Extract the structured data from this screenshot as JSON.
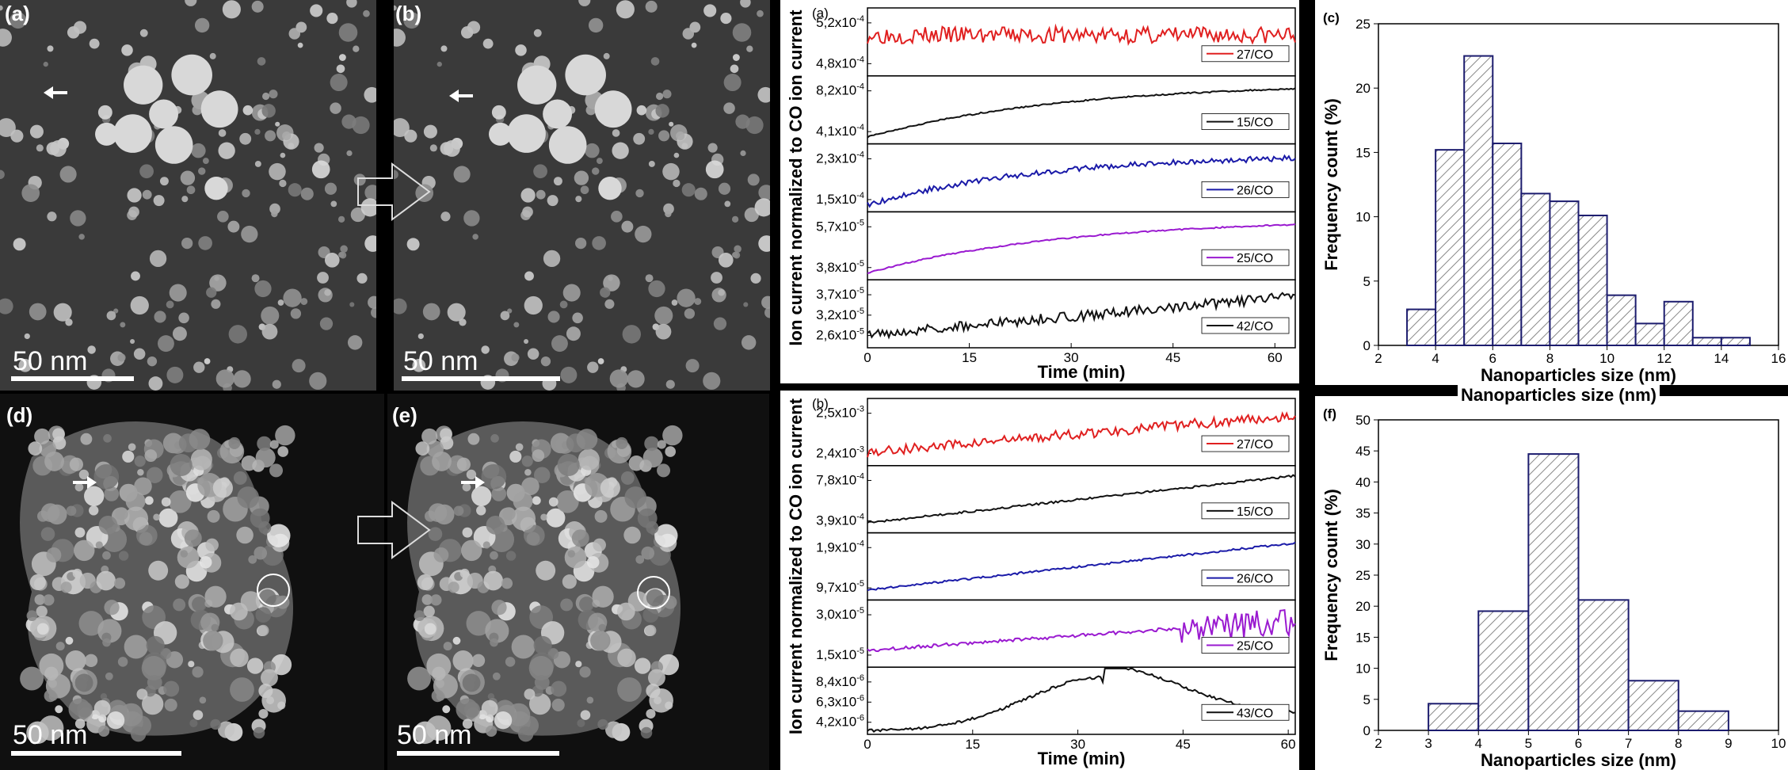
{
  "tem_panels": [
    {
      "label": "(a)",
      "scale": "50 nm",
      "arrow": "left"
    },
    {
      "label": "(b)",
      "scale": "50 nm",
      "arrow": "left"
    },
    {
      "label": "(d)",
      "scale": "50 nm",
      "arrow": "right"
    },
    {
      "label": "(e)",
      "scale": "50 nm",
      "arrow": "right"
    }
  ],
  "ion_a": {
    "label": "(a)",
    "ylabel": "Ion current normalized to CO ion current",
    "xlabel": "Time (min)",
    "xticks": [
      "0",
      "15",
      "30",
      "45",
      "60"
    ],
    "xlim": [
      0,
      63
    ],
    "strips": [
      {
        "legend": "27/CO",
        "color": "#e02020",
        "ticks": [
          "5,2x10-4",
          "4,8x10-4"
        ]
      },
      {
        "legend": "15/CO",
        "color": "#111111",
        "ticks": [
          "8,2x10-4",
          "4,1x10-4"
        ]
      },
      {
        "legend": "26/CO",
        "color": "#1a1aa8",
        "ticks": [
          "2,3x10-4",
          "1,5x10-4"
        ]
      },
      {
        "legend": "25/CO",
        "color": "#9a1ad0",
        "ticks": [
          "5,7x10-5",
          "3,8x10-5"
        ]
      },
      {
        "legend": "42/CO",
        "color": "#111111",
        "ticks": [
          "3,7x10-5",
          "3,2x10-5",
          "2,6x10-5"
        ]
      }
    ]
  },
  "ion_b": {
    "label": "(b)",
    "ylabel": "Ion current normalized to CO ion current",
    "xlabel": "Time (min)",
    "xticks": [
      "0",
      "15",
      "30",
      "45",
      "60"
    ],
    "xlim": [
      0,
      61
    ],
    "strips": [
      {
        "legend": "27/CO",
        "color": "#e02020",
        "ticks": [
          "2,5x10-3",
          "2,4x10-3"
        ]
      },
      {
        "legend": "15/CO",
        "color": "#111111",
        "ticks": [
          "7,8x10-4",
          "3,9x10-4"
        ]
      },
      {
        "legend": "26/CO",
        "color": "#1a1aa8",
        "ticks": [
          "1,9x10-4",
          "9,7x10-5"
        ]
      },
      {
        "legend": "25/CO",
        "color": "#9a1ad0",
        "ticks": [
          "3,0x10-5",
          "1,5x10-5"
        ]
      },
      {
        "legend": "43/CO",
        "color": "#111111",
        "ticks": [
          "8,4x10-6",
          "6,3x10-6",
          "4,2x10-6"
        ]
      }
    ]
  },
  "chart_data": [
    {
      "type": "bar",
      "label": "(c)",
      "title": "Nanoparticles size (nm)",
      "xlabel": "Nanoparticles size (nm)",
      "ylabel": "Frequency count (%)",
      "xlim": [
        2,
        16
      ],
      "ylim": [
        0,
        25
      ],
      "xticks": [
        "2",
        "4",
        "6",
        "8",
        "10",
        "12",
        "14",
        "16"
      ],
      "yticks": [
        "0",
        "5",
        "10",
        "15",
        "20",
        "25"
      ],
      "bin_edges": [
        3,
        4,
        5,
        6,
        7,
        8,
        9,
        10,
        11,
        12,
        13,
        14,
        15
      ],
      "values": [
        2.8,
        15.2,
        22.5,
        15.7,
        11.8,
        11.2,
        10.1,
        3.9,
        1.7,
        3.4,
        0.6,
        0.6
      ]
    },
    {
      "type": "bar",
      "label": "(f)",
      "xlabel": "Nanoparticles size (nm)",
      "ylabel": "Frequency count (%)",
      "xlim": [
        2,
        10
      ],
      "ylim": [
        0,
        50
      ],
      "xticks": [
        "2",
        "3",
        "4",
        "5",
        "6",
        "7",
        "8",
        "9",
        "10"
      ],
      "yticks": [
        "0",
        "5",
        "10",
        "15",
        "20",
        "25",
        "30",
        "35",
        "40",
        "45",
        "50"
      ],
      "bin_edges": [
        3,
        4,
        5,
        6,
        7,
        8,
        9
      ],
      "values": [
        4.3,
        19.2,
        44.5,
        21.0,
        8.0,
        3.1
      ]
    }
  ]
}
